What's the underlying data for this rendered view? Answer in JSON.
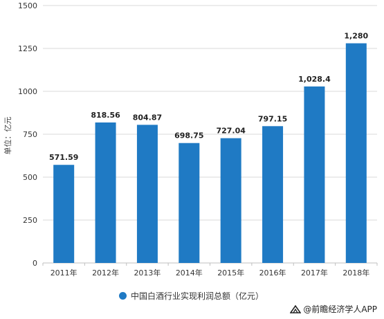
{
  "colors": {
    "bar": "#1f7ac4",
    "grid": "#d9d9d9",
    "axis_text": "#333333",
    "label_text": "#222222",
    "watermark_brand": "#e6e9ee"
  },
  "chart_data": {
    "type": "bar",
    "categories": [
      "2011年",
      "2012年",
      "2013年",
      "2014年",
      "2015年",
      "2016年",
      "2017年",
      "2018年"
    ],
    "series": [
      {
        "name": "中国白酒行业实现利润总额（亿元）",
        "values": [
          571.59,
          818.56,
          804.87,
          698.75,
          727.04,
          797.15,
          1028.4,
          1280
        ],
        "labels": [
          "571.59",
          "818.56",
          "804.87",
          "698.75",
          "727.04",
          "797.15",
          "1,028.4",
          "1,280"
        ]
      }
    ],
    "ylabel": "单位：亿元",
    "ylim": [
      0,
      1500
    ],
    "yticks": [
      0,
      250,
      500,
      750,
      1000,
      1250,
      1500
    ],
    "ytick_labels": [
      "0",
      "250",
      "500",
      "750",
      "1000",
      "1250",
      "1500"
    ],
    "grid": true,
    "legend_position": "bottom"
  },
  "legend": {
    "label": "中国白酒行业实现利润总额（亿元）"
  },
  "footer": {
    "source": "@前瞻经济学人APP"
  }
}
